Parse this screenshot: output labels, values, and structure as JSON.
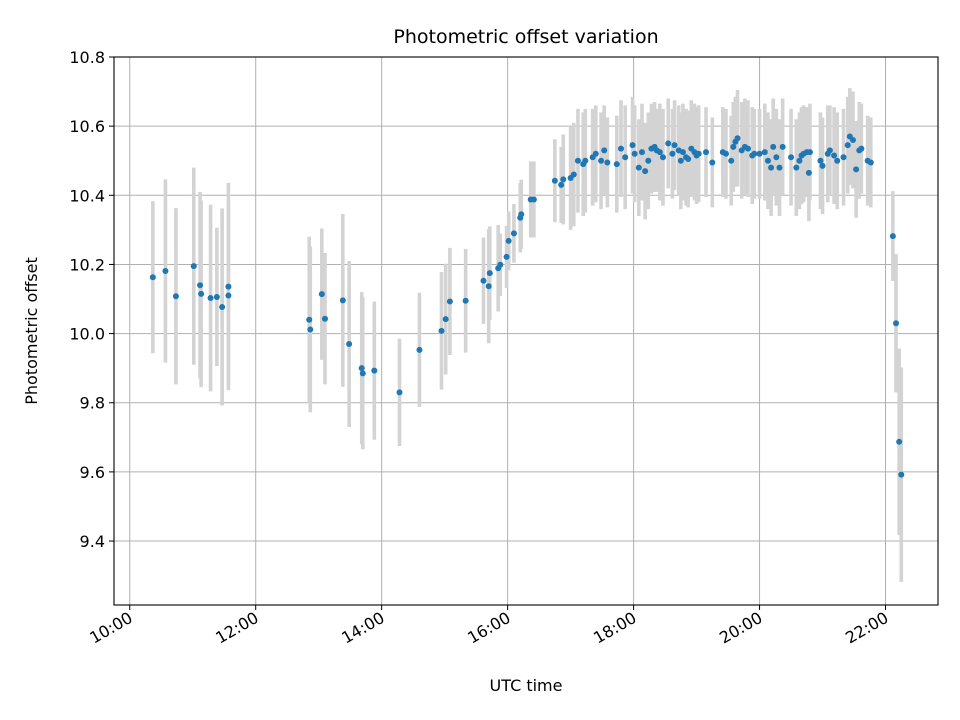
{
  "chart_data": {
    "type": "scatter",
    "title": "Photometric offset variation",
    "xlabel": "UTC time",
    "ylabel": "Photometric offset",
    "xlim": [
      "09:45",
      "22:50"
    ],
    "ylim": [
      9.215,
      10.8
    ],
    "x_ticks": [
      "10:00",
      "12:00",
      "14:00",
      "16:00",
      "18:00",
      "20:00",
      "22:00"
    ],
    "y_ticks": [
      "9.4",
      "9.6",
      "9.8",
      "10.0",
      "10.2",
      "10.4",
      "10.6",
      "10.8"
    ],
    "grid": true,
    "colors": {
      "marker": "#1f77b4",
      "errorbar": "#d3d3d3",
      "grid": "#b0b0b0"
    },
    "points": [
      {
        "t": "10:22",
        "y": 10.163,
        "err": 0.22
      },
      {
        "t": "10:34",
        "y": 10.181,
        "err": 0.265
      },
      {
        "t": "10:44",
        "y": 10.108,
        "err": 0.255
      },
      {
        "t": "11:01",
        "y": 10.195,
        "err": 0.285
      },
      {
        "t": "11:07",
        "y": 10.14,
        "err": 0.27
      },
      {
        "t": "11:08",
        "y": 10.115,
        "err": 0.27
      },
      {
        "t": "11:17",
        "y": 10.103,
        "err": 0.27
      },
      {
        "t": "11:23",
        "y": 10.106,
        "err": 0.2
      },
      {
        "t": "11:28",
        "y": 10.077,
        "err": 0.285
      },
      {
        "t": "11:34",
        "y": 10.11,
        "err": 0.26
      },
      {
        "t": "11:34",
        "y": 10.136,
        "err": 0.3
      },
      {
        "t": "12:51",
        "y": 10.04,
        "err": 0.24
      },
      {
        "t": "12:52",
        "y": 10.012,
        "err": 0.24
      },
      {
        "t": "13:03",
        "y": 10.114,
        "err": 0.19
      },
      {
        "t": "13:06",
        "y": 10.043,
        "err": 0.19
      },
      {
        "t": "13:23",
        "y": 10.096,
        "err": 0.25
      },
      {
        "t": "13:29",
        "y": 9.97,
        "err": 0.24
      },
      {
        "t": "13:41",
        "y": 9.9,
        "err": 0.22
      },
      {
        "t": "13:42",
        "y": 9.885,
        "err": 0.22
      },
      {
        "t": "13:53",
        "y": 9.893,
        "err": 0.2
      },
      {
        "t": "14:17",
        "y": 9.83,
        "err": 0.155
      },
      {
        "t": "14:36",
        "y": 9.953,
        "err": 0.165
      },
      {
        "t": "14:57",
        "y": 10.008,
        "err": 0.17
      },
      {
        "t": "15:01",
        "y": 10.042,
        "err": 0.16
      },
      {
        "t": "15:05",
        "y": 10.093,
        "err": 0.155
      },
      {
        "t": "15:20",
        "y": 10.095,
        "err": 0.15
      },
      {
        "t": "15:37",
        "y": 10.153,
        "err": 0.125
      },
      {
        "t": "15:42",
        "y": 10.137,
        "err": 0.165
      },
      {
        "t": "15:43",
        "y": 10.175,
        "err": 0.135
      },
      {
        "t": "15:51",
        "y": 10.189,
        "err": 0.125
      },
      {
        "t": "15:53",
        "y": 10.199,
        "err": 0.09
      },
      {
        "t": "15:59",
        "y": 10.222,
        "err": 0.09
      },
      {
        "t": "16:01",
        "y": 10.268,
        "err": 0.085
      },
      {
        "t": "16:06",
        "y": 10.29,
        "err": 0.085
      },
      {
        "t": "16:12",
        "y": 10.335,
        "err": 0.1
      },
      {
        "t": "16:13",
        "y": 10.345,
        "err": 0.1
      },
      {
        "t": "16:22",
        "y": 10.388,
        "err": 0.11
      },
      {
        "t": "16:25",
        "y": 10.388,
        "err": 0.11
      },
      {
        "t": "16:45",
        "y": 10.442,
        "err": 0.12
      },
      {
        "t": "16:51",
        "y": 10.43,
        "err": 0.11
      },
      {
        "t": "16:53",
        "y": 10.446,
        "err": 0.13
      },
      {
        "t": "17:00",
        "y": 10.45,
        "err": 0.15
      },
      {
        "t": "17:03",
        "y": 10.46,
        "err": 0.15
      },
      {
        "t": "17:07",
        "y": 10.5,
        "err": 0.15
      },
      {
        "t": "17:12",
        "y": 10.49,
        "err": 0.15
      },
      {
        "t": "17:14",
        "y": 10.5,
        "err": 0.15
      },
      {
        "t": "17:21",
        "y": 10.51,
        "err": 0.14
      },
      {
        "t": "17:24",
        "y": 10.52,
        "err": 0.14
      },
      {
        "t": "17:29",
        "y": 10.5,
        "err": 0.14
      },
      {
        "t": "17:32",
        "y": 10.53,
        "err": 0.13
      },
      {
        "t": "17:35",
        "y": 10.495,
        "err": 0.13
      },
      {
        "t": "17:44",
        "y": 10.49,
        "err": 0.14
      },
      {
        "t": "17:48",
        "y": 10.535,
        "err": 0.14
      },
      {
        "t": "17:52",
        "y": 10.51,
        "err": 0.15
      },
      {
        "t": "17:59",
        "y": 10.545,
        "err": 0.14
      },
      {
        "t": "18:01",
        "y": 10.52,
        "err": 0.14
      },
      {
        "t": "18:05",
        "y": 10.48,
        "err": 0.14
      },
      {
        "t": "18:08",
        "y": 10.525,
        "err": 0.14
      },
      {
        "t": "18:11",
        "y": 10.47,
        "err": 0.14
      },
      {
        "t": "18:14",
        "y": 10.5,
        "err": 0.14
      },
      {
        "t": "18:17",
        "y": 10.535,
        "err": 0.13
      },
      {
        "t": "18:20",
        "y": 10.54,
        "err": 0.13
      },
      {
        "t": "18:22",
        "y": 10.53,
        "err": 0.12
      },
      {
        "t": "18:25",
        "y": 10.525,
        "err": 0.14
      },
      {
        "t": "18:28",
        "y": 10.51,
        "err": 0.14
      },
      {
        "t": "18:33",
        "y": 10.55,
        "err": 0.13
      },
      {
        "t": "18:37",
        "y": 10.52,
        "err": 0.13
      },
      {
        "t": "18:39",
        "y": 10.545,
        "err": 0.13
      },
      {
        "t": "18:43",
        "y": 10.53,
        "err": 0.13
      },
      {
        "t": "18:45",
        "y": 10.5,
        "err": 0.14
      },
      {
        "t": "18:47",
        "y": 10.525,
        "err": 0.14
      },
      {
        "t": "18:50",
        "y": 10.51,
        "err": 0.14
      },
      {
        "t": "18:52",
        "y": 10.505,
        "err": 0.14
      },
      {
        "t": "18:55",
        "y": 10.535,
        "err": 0.14
      },
      {
        "t": "18:58",
        "y": 10.525,
        "err": 0.14
      },
      {
        "t": "19:00",
        "y": 10.515,
        "err": 0.14
      },
      {
        "t": "19:02",
        "y": 10.52,
        "err": 0.14
      },
      {
        "t": "19:09",
        "y": 10.525,
        "err": 0.13
      },
      {
        "t": "19:15",
        "y": 10.495,
        "err": 0.13
      },
      {
        "t": "19:25",
        "y": 10.525,
        "err": 0.13
      },
      {
        "t": "19:28",
        "y": 10.52,
        "err": 0.13
      },
      {
        "t": "19:33",
        "y": 10.5,
        "err": 0.13
      },
      {
        "t": "19:35",
        "y": 10.54,
        "err": 0.13
      },
      {
        "t": "19:37",
        "y": 10.555,
        "err": 0.13
      },
      {
        "t": "19:39",
        "y": 10.565,
        "err": 0.14
      },
      {
        "t": "19:43",
        "y": 10.53,
        "err": 0.14
      },
      {
        "t": "19:46",
        "y": 10.54,
        "err": 0.14
      },
      {
        "t": "19:49",
        "y": 10.535,
        "err": 0.14
      },
      {
        "t": "19:53",
        "y": 10.515,
        "err": 0.14
      },
      {
        "t": "19:55",
        "y": 10.52,
        "err": 0.13
      },
      {
        "t": "20:00",
        "y": 10.52,
        "err": 0.13
      },
      {
        "t": "20:05",
        "y": 10.525,
        "err": 0.14
      },
      {
        "t": "20:08",
        "y": 10.5,
        "err": 0.14
      },
      {
        "t": "20:11",
        "y": 10.48,
        "err": 0.14
      },
      {
        "t": "20:13",
        "y": 10.54,
        "err": 0.14
      },
      {
        "t": "20:16",
        "y": 10.51,
        "err": 0.14
      },
      {
        "t": "20:19",
        "y": 10.48,
        "err": 0.14
      },
      {
        "t": "20:22",
        "y": 10.54,
        "err": 0.14
      },
      {
        "t": "20:30",
        "y": 10.51,
        "err": 0.14
      },
      {
        "t": "20:35",
        "y": 10.48,
        "err": 0.14
      },
      {
        "t": "20:38",
        "y": 10.5,
        "err": 0.14
      },
      {
        "t": "20:40",
        "y": 10.515,
        "err": 0.14
      },
      {
        "t": "20:42",
        "y": 10.52,
        "err": 0.14
      },
      {
        "t": "20:45",
        "y": 10.525,
        "err": 0.13
      },
      {
        "t": "20:47",
        "y": 10.465,
        "err": 0.14
      },
      {
        "t": "20:48",
        "y": 10.525,
        "err": 0.14
      },
      {
        "t": "20:58",
        "y": 10.5,
        "err": 0.14
      },
      {
        "t": "21:00",
        "y": 10.485,
        "err": 0.14
      },
      {
        "t": "21:05",
        "y": 10.52,
        "err": 0.14
      },
      {
        "t": "21:07",
        "y": 10.53,
        "err": 0.13
      },
      {
        "t": "21:11",
        "y": 10.515,
        "err": 0.14
      },
      {
        "t": "21:14",
        "y": 10.5,
        "err": 0.14
      },
      {
        "t": "21:20",
        "y": 10.51,
        "err": 0.14
      },
      {
        "t": "21:24",
        "y": 10.545,
        "err": 0.14
      },
      {
        "t": "21:26",
        "y": 10.57,
        "err": 0.14
      },
      {
        "t": "21:29",
        "y": 10.56,
        "err": 0.14
      },
      {
        "t": "21:32",
        "y": 10.475,
        "err": 0.14
      },
      {
        "t": "21:35",
        "y": 10.53,
        "err": 0.14
      },
      {
        "t": "21:37",
        "y": 10.535,
        "err": 0.13
      },
      {
        "t": "21:43",
        "y": 10.5,
        "err": 0.13
      },
      {
        "t": "21:46",
        "y": 10.495,
        "err": 0.13
      },
      {
        "t": "22:07",
        "y": 10.282,
        "err": 0.13
      },
      {
        "t": "22:10",
        "y": 10.03,
        "err": 0.2
      },
      {
        "t": "22:13",
        "y": 9.687,
        "err": 0.27
      },
      {
        "t": "22:15",
        "y": 9.592,
        "err": 0.31
      }
    ]
  }
}
